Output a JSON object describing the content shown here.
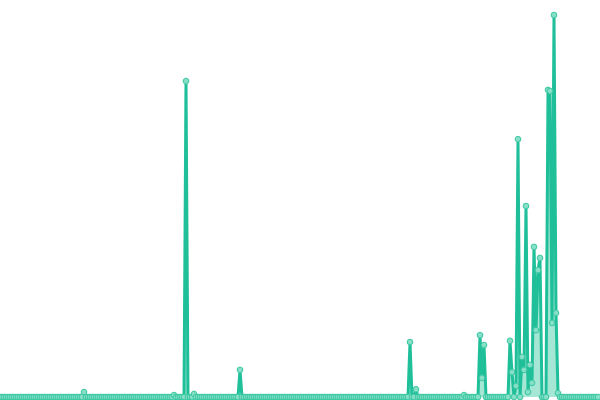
{
  "chart_data": {
    "type": "area",
    "title": "",
    "xlabel": "",
    "ylabel": "",
    "xlim": [
      0,
      299
    ],
    "ylim": [
      0,
      100
    ],
    "grid": false,
    "axes_visible": false,
    "legend": "none",
    "colors": {
      "line": "#1fbf99",
      "area": "#8fe0c9",
      "marker_fill": "#86dfc6",
      "marker_stroke": "#3cc8a3"
    },
    "series": [
      {
        "values": [
          0,
          0,
          0,
          0,
          0,
          0,
          0,
          0,
          0,
          0,
          0,
          0,
          0,
          0,
          0,
          0,
          0,
          0,
          0,
          0,
          0,
          0,
          0,
          0,
          0,
          0,
          0,
          0,
          0,
          0,
          0,
          0,
          0,
          0,
          0,
          0,
          0,
          0,
          0,
          0,
          0,
          0,
          1.3,
          0,
          0,
          0,
          0,
          0,
          0,
          0,
          0,
          0,
          0,
          0,
          0,
          0,
          0,
          0,
          0,
          0,
          0,
          0,
          0,
          0,
          0,
          0,
          0,
          0,
          0,
          0,
          0,
          0,
          0,
          0,
          0,
          0,
          0,
          0,
          0,
          0,
          0,
          0,
          0,
          0,
          0,
          0,
          0,
          0.5,
          0,
          0,
          0,
          0,
          0,
          82.7,
          0,
          0,
          0,
          0.8,
          0,
          0,
          0,
          0,
          0,
          0,
          0,
          0,
          0,
          0,
          0,
          0,
          0,
          0,
          0,
          0,
          0,
          0,
          0,
          0,
          0,
          0,
          7.1,
          0,
          0,
          0,
          0,
          0,
          0,
          0,
          0,
          0,
          0,
          0,
          0,
          0,
          0,
          0,
          0,
          0,
          0,
          0,
          0,
          0,
          0,
          0,
          0,
          0,
          0,
          0,
          0,
          0,
          0,
          0,
          0,
          0,
          0,
          0,
          0,
          0,
          0,
          0,
          0,
          0,
          0,
          0,
          0,
          0,
          0,
          0,
          0,
          0,
          0,
          0,
          0,
          0,
          0,
          0,
          0,
          0,
          0,
          0,
          0,
          0,
          0,
          0,
          0,
          0,
          0,
          0,
          0,
          0,
          0,
          0,
          0,
          0,
          0,
          0,
          0,
          0,
          0,
          0,
          0,
          0,
          0,
          0,
          0,
          14.4,
          0,
          0,
          2,
          0,
          0,
          0,
          0,
          0,
          0,
          0,
          0,
          0,
          0,
          0,
          0,
          0,
          0,
          0,
          0,
          0,
          0,
          0,
          0,
          0,
          0,
          0,
          0.5,
          0,
          0,
          0,
          0,
          0,
          0,
          0,
          16.2,
          5,
          13.6,
          0,
          0,
          0,
          0,
          0,
          0,
          0,
          0,
          0,
          0,
          0,
          0,
          14.7,
          6.5,
          0,
          2.9,
          67.5,
          0,
          10.5,
          7.1,
          50,
          1.3,
          8.4,
          3.7,
          39.3,
          17.5,
          33.2,
          36.4,
          0,
          0,
          0,
          80.4,
          80.1,
          19.4,
          100,
          22,
          1,
          0,
          0,
          0,
          0,
          0,
          0,
          0,
          0,
          0,
          0,
          0,
          0,
          0,
          0,
          0,
          0,
          0,
          0,
          0,
          0
        ]
      }
    ]
  }
}
